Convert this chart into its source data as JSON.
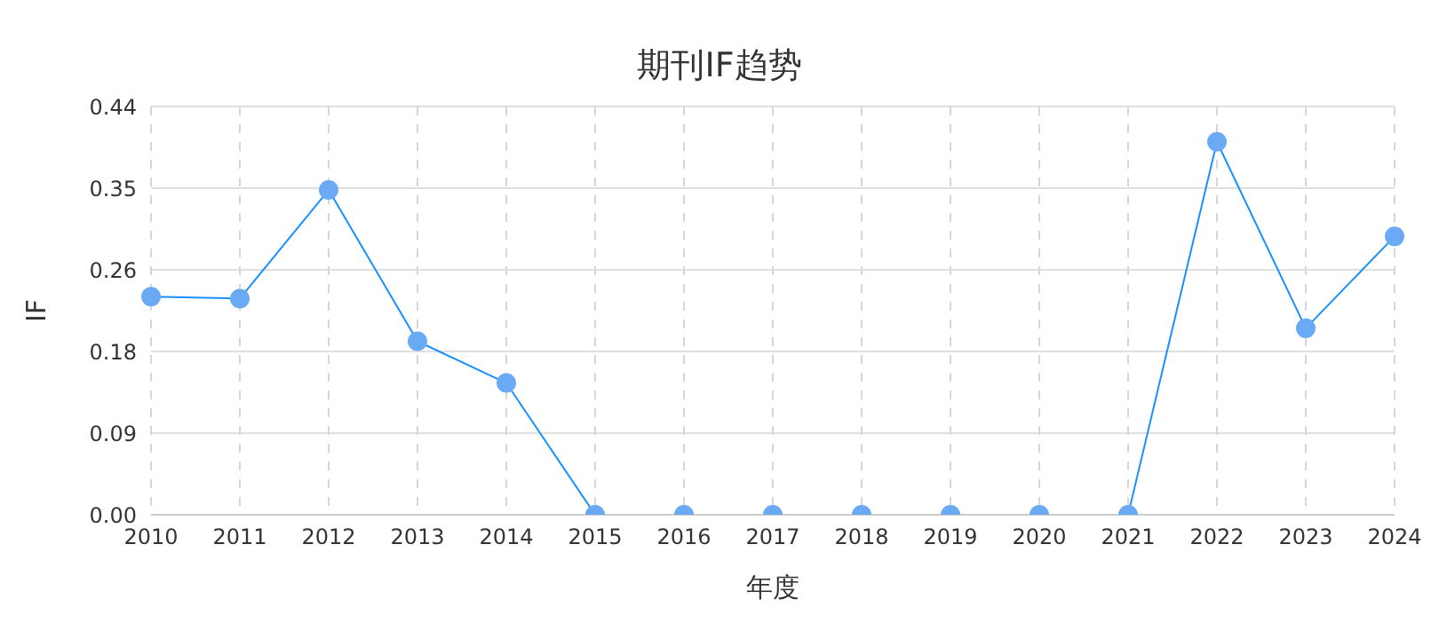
{
  "chart_data": {
    "type": "line",
    "title": "期刊IF趋势",
    "xlabel": "年度",
    "ylabel": "IF",
    "categories": [
      "2010",
      "2011",
      "2012",
      "2013",
      "2014",
      "2015",
      "2016",
      "2017",
      "2018",
      "2019",
      "2020",
      "2021",
      "2022",
      "2023",
      "2024"
    ],
    "series": [
      {
        "color": "#1890ff",
        "values": [
          0.235,
          0.233,
          0.35,
          0.187,
          0.142,
          0,
          0,
          0,
          0,
          0,
          0,
          0,
          0.402,
          0.201,
          0.3
        ]
      }
    ],
    "ylim": [
      0,
      0.44
    ],
    "yticks": [
      {
        "value": 0,
        "label": "0.00"
      },
      {
        "value": 0.088,
        "label": "0.09"
      },
      {
        "value": 0.176,
        "label": "0.18"
      },
      {
        "value": 0.264,
        "label": "0.26"
      },
      {
        "value": 0.352,
        "label": "0.35"
      },
      {
        "value": 0.44,
        "label": "0.44"
      }
    ],
    "grid": true,
    "marker": "circle",
    "line_style": "solid",
    "legend": false
  }
}
